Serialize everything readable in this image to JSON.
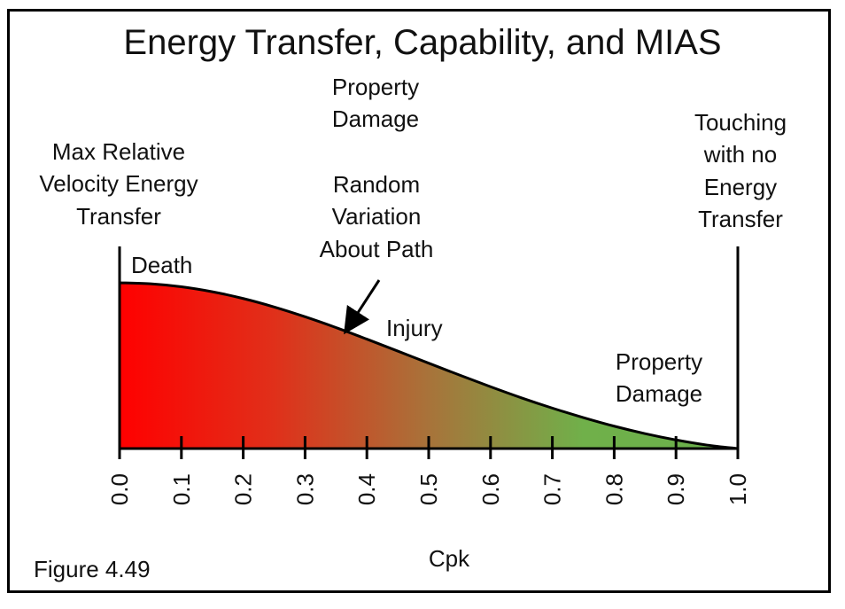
{
  "title": "Energy Transfer, Capability, and MIAS",
  "figure_label": "Figure 4.49",
  "x_axis_label": "Cpk",
  "annotations": {
    "max_relative": [
      "Max Relative",
      "Velocity Energy",
      "Transfer"
    ],
    "property_damage_top": [
      "Property",
      "Damage"
    ],
    "touching": [
      "Touching",
      "with no",
      "Energy",
      "Transfer"
    ],
    "random_variation": [
      "Random",
      "Variation",
      "About Path"
    ],
    "death": "Death",
    "injury": "Injury",
    "property_damage_right": [
      "Property",
      "Damage"
    ]
  },
  "chart_data": {
    "type": "area",
    "xlabel": "Cpk",
    "xlim": [
      0.0,
      1.0
    ],
    "x_ticks": [
      "0.0",
      "0.1",
      "0.2",
      "0.3",
      "0.4",
      "0.5",
      "0.6",
      "0.7",
      "0.8",
      "0.9",
      "1.0"
    ],
    "curve": {
      "x": [
        0.0,
        0.05,
        0.1,
        0.15,
        0.2,
        0.25,
        0.3,
        0.35,
        0.4,
        0.45,
        0.5,
        0.55,
        0.6,
        0.65,
        0.7,
        0.75,
        0.8,
        0.85,
        0.9,
        0.95,
        1.0
      ],
      "y": [
        1.0,
        0.994,
        0.976,
        0.946,
        0.905,
        0.854,
        0.795,
        0.73,
        0.66,
        0.588,
        0.515,
        0.443,
        0.373,
        0.306,
        0.244,
        0.187,
        0.135,
        0.09,
        0.052,
        0.021,
        0.0
      ]
    },
    "gradient_colors": [
      "#ff0000",
      "#e0301a",
      "#a8733a",
      "#70b04a",
      "#6ab04c"
    ],
    "arrow_points_to_x": 0.37
  }
}
